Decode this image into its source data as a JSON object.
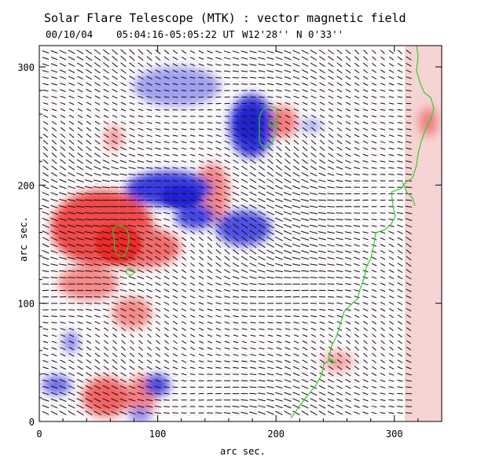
{
  "header": {
    "title": "Solar Flare Telescope (MTK) : vector magnetic field",
    "date": "00/10/04",
    "time_range": "05:04:16-05:05:22 UT",
    "longitude": "W12'28''",
    "latitude": "N 0'33''"
  },
  "chart_data": {
    "type": "heatmap",
    "title": "Solar Flare Telescope (MTK) : vector magnetic field",
    "xlabel": "arc sec.",
    "ylabel": "arc sec.",
    "xlim": [
      0,
      340
    ],
    "ylim": [
      0,
      318
    ],
    "x_ticks": [
      0,
      100,
      200,
      300
    ],
    "y_ticks": [
      0,
      100,
      200,
      300
    ],
    "layers": [
      "longitudinal field (red = positive, blue = negative)",
      "transverse field vectors (black arrows)",
      "neutral line / contour (green)"
    ],
    "colors": {
      "positive": "#ee2020",
      "negative": "#2020dd",
      "vector": "#000000",
      "contour": "#33cc33"
    }
  }
}
